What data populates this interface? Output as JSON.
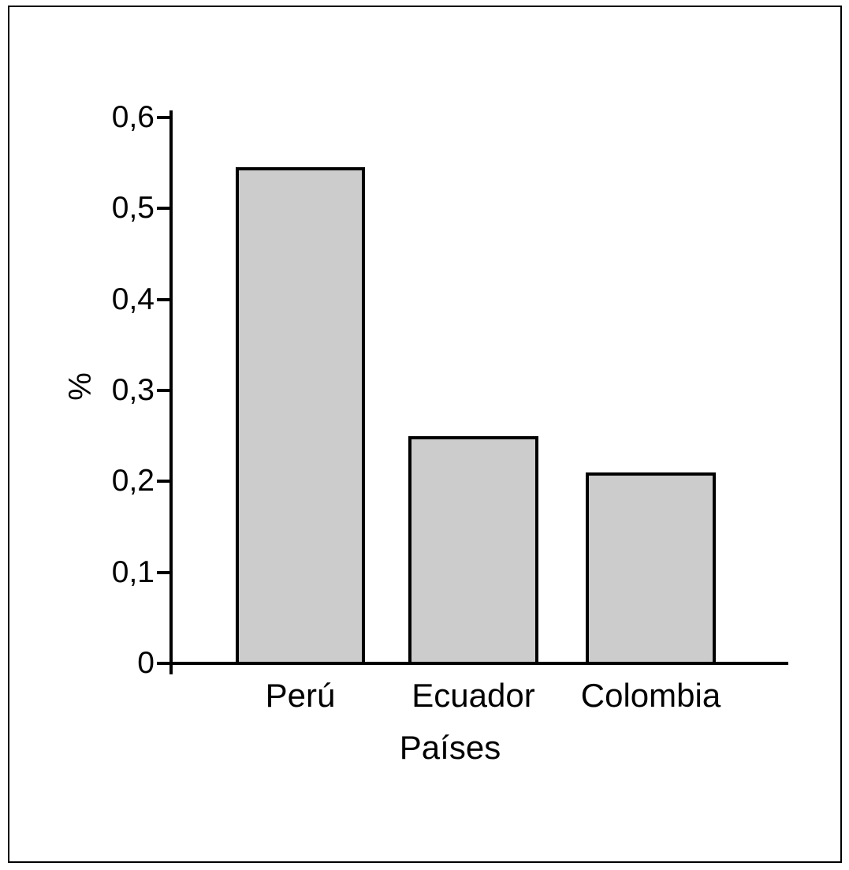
{
  "chart_data": {
    "type": "bar",
    "categories": [
      "Perú",
      "Ecuador",
      "Colombia"
    ],
    "values": [
      0.545,
      0.25,
      0.21
    ],
    "title": "",
    "xlabel": "Países",
    "ylabel": "%",
    "ylim": [
      0,
      0.6
    ],
    "yticks": [
      {
        "label": "0",
        "value": 0
      },
      {
        "label": "0,1",
        "value": 0.1
      },
      {
        "label": "0,2",
        "value": 0.2
      },
      {
        "label": "0,3",
        "value": 0.3
      },
      {
        "label": "0,4",
        "value": 0.4
      },
      {
        "label": "0,5",
        "value": 0.5
      },
      {
        "label": "0,6",
        "value": 0.6
      }
    ],
    "grid": false,
    "legend": false,
    "decimal_separator": ",",
    "colors": {
      "bar_fill": "#cccccc",
      "bar_border": "#000000",
      "axis": "#000000",
      "text": "#000000",
      "frame_border": "#000000",
      "background": "#ffffff"
    }
  }
}
